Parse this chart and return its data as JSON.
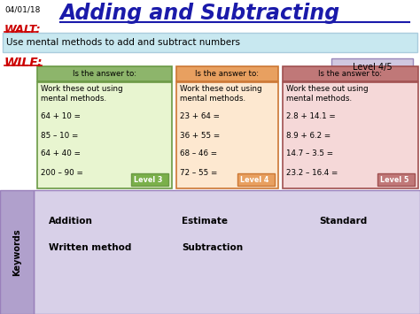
{
  "date": "04/01/18",
  "title": "Adding and Subtracting",
  "walt_label": "WALT:",
  "walt_text": "Use mental methods to add and subtract numbers",
  "wilf_label": "WILF:",
  "level_badge": "Level 4/5",
  "col1_header": "Is the answer to:",
  "col2_header": "Is the answer to:",
  "col3_header": "Is the answer to:",
  "col1_lines": [
    "Work these out using",
    "mental methods.",
    "",
    "64 + 10 =",
    "",
    "85 – 10 =",
    "",
    "64 + 40 =",
    "",
    "200 – 90 ="
  ],
  "col2_lines": [
    "Work these out using",
    "mental methods.",
    "",
    "23 + 64 =",
    "",
    "36 + 55 =",
    "",
    "68 – 46 =",
    "",
    "72 – 55 ="
  ],
  "col3_lines": [
    "Work these out using",
    "mental methods.",
    "",
    "2.8 + 14.1 =",
    "",
    "8.9 + 6.2 =",
    "",
    "14.7 – 3.5 =",
    "",
    "23.2 – 16.4 ="
  ],
  "level1": "Level 3",
  "level2": "Level 4",
  "level3": "Level 5",
  "col1_header_color": "#8db56b",
  "col1_body_color": "#e8f5d0",
  "col1_border_color": "#6a9944",
  "col1_level_color": "#7ab04a",
  "col2_header_color": "#e8a060",
  "col2_body_color": "#fde8d0",
  "col2_border_color": "#cc7733",
  "col2_level_color": "#e8a060",
  "col3_header_color": "#c07878",
  "col3_body_color": "#f5d8d8",
  "col3_border_color": "#a05050",
  "col3_level_color": "#c07878",
  "walt_bg": "#c8e8f0",
  "walt_border": "#aaccdd",
  "wilf_color": "#cc0000",
  "title_color": "#1a1aaa",
  "keywords_bg": "#d8d0e8",
  "keywords_side_bg": "#b0a0cc",
  "keywords_border": "#9980bb",
  "level_badge_bg": "#d0c8e0",
  "level_badge_border": "#9988bb",
  "kw_texts": [
    [
      "Addition",
      55,
      105
    ],
    [
      "Estimate",
      205,
      105
    ],
    [
      "Standard",
      360,
      105
    ],
    [
      "Written method",
      55,
      75
    ],
    [
      "Subtraction",
      205,
      75
    ]
  ]
}
